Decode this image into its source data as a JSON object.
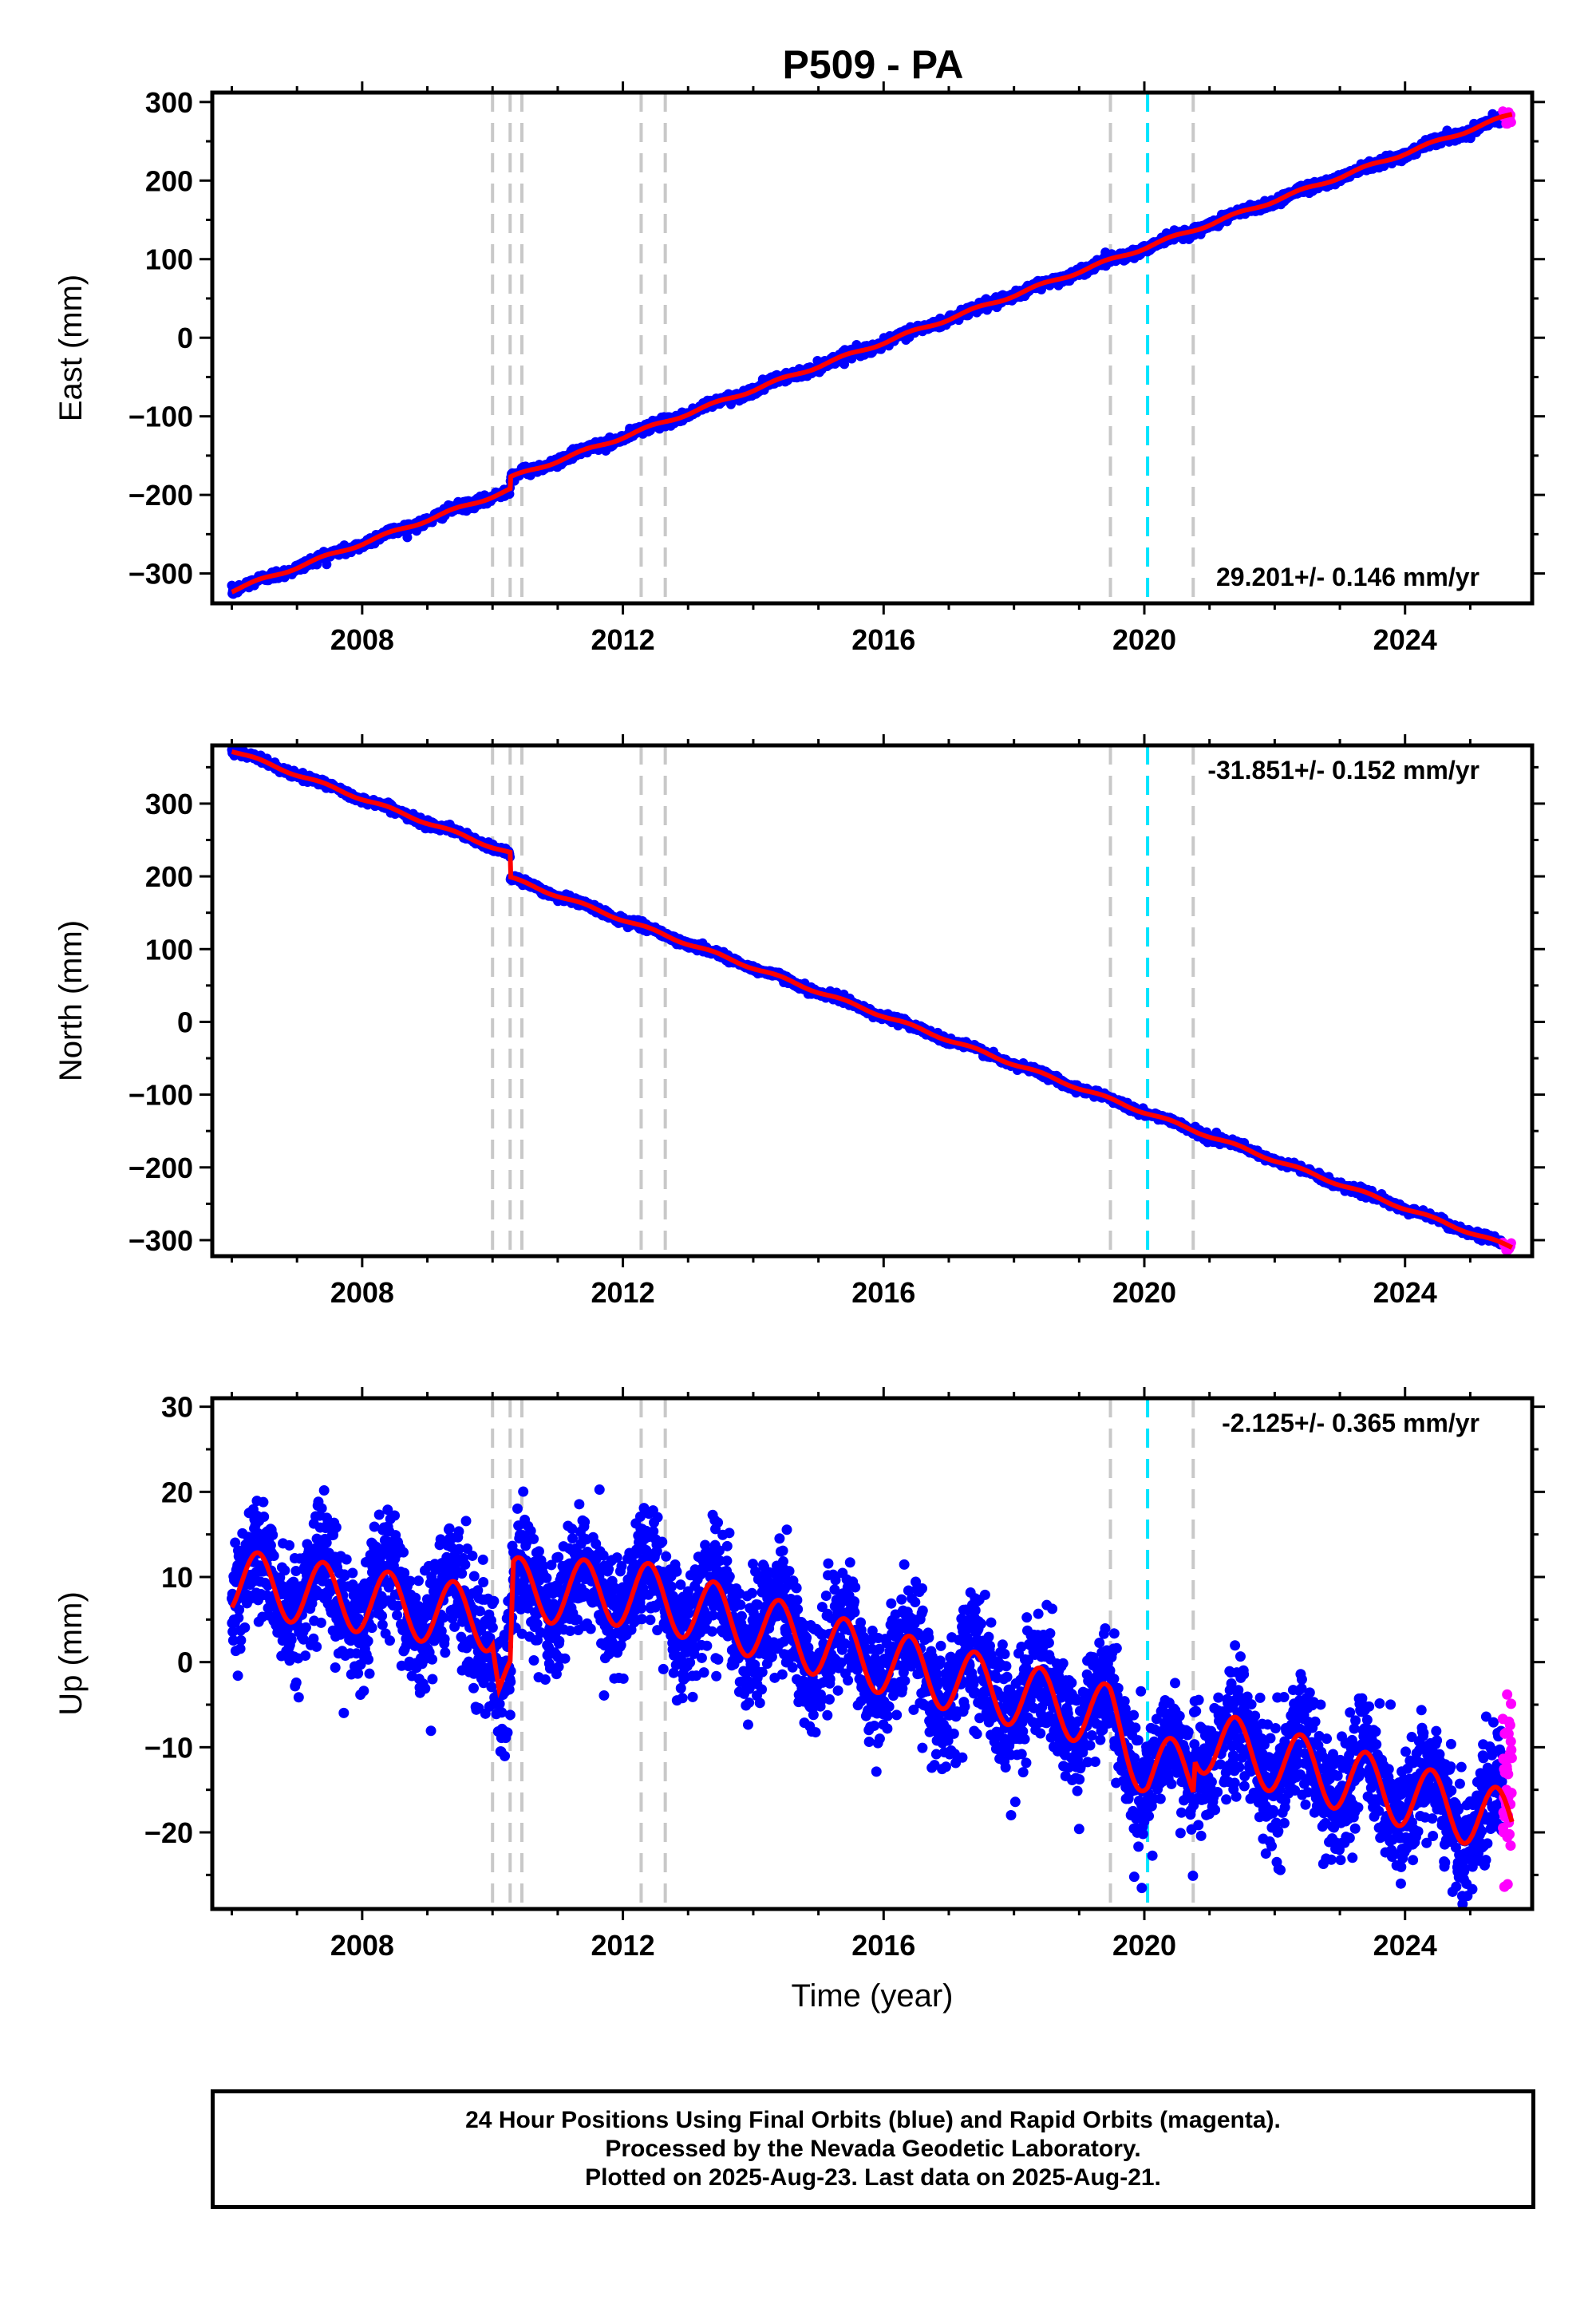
{
  "title": "P509 - PA",
  "footer": {
    "line1": "24 Hour Positions Using Final Orbits (blue) and Rapid Orbits (magenta).",
    "line2": "Processed by the Nevada Geodetic Laboratory.",
    "line3": "Plotted on 2025-Aug-23. Last data on 2025-Aug-21."
  },
  "colors": {
    "final_orbits": "#0000ff",
    "rapid_orbits": "#ff00ff",
    "model_fit": "#ff0000",
    "event_lines": "#c8c8c8",
    "reference_line": "#00e5ff"
  },
  "chart_data": [
    {
      "type": "scatter",
      "title": "P509 - PA",
      "xlabel": "",
      "ylabel": "East (mm)",
      "xlim": [
        2005.7,
        2025.95
      ],
      "ylim": [
        -338,
        312
      ],
      "x_ticks": [
        2008,
        2012,
        2016,
        2020,
        2024
      ],
      "y_ticks": [
        -300,
        -200,
        -100,
        0,
        100,
        200,
        300
      ],
      "rate_label": "29.201+/- 0.146 mm/yr",
      "rate_position": "bottom-right",
      "grey_event_lines": [
        2010.0,
        2010.27,
        2010.45,
        2012.28,
        2012.65,
        2019.48,
        2020.75
      ],
      "cyan_event_line": 2020.05,
      "trend": {
        "start": [
          2006.0,
          -322
        ],
        "end": [
          2025.6,
          283
        ]
      },
      "steps": [
        {
          "x": 2010.27,
          "dy": 15
        }
      ],
      "seasonal_amplitude": 2,
      "scatter_sd": 3,
      "series": [
        {
          "name": "Final Orbits",
          "color": "#0000ff",
          "x_range": [
            2006.0,
            2025.5
          ]
        },
        {
          "name": "Rapid Orbits",
          "color": "#ff00ff",
          "x_range": [
            2025.5,
            2025.64
          ]
        },
        {
          "name": "Model",
          "color": "#ff0000",
          "line": true
        }
      ]
    },
    {
      "type": "scatter",
      "xlabel": "",
      "ylabel": "North (mm)",
      "xlim": [
        2005.7,
        2025.95
      ],
      "ylim": [
        -322,
        380
      ],
      "x_ticks": [
        2008,
        2012,
        2016,
        2020,
        2024
      ],
      "y_ticks": [
        -300,
        -200,
        -100,
        0,
        100,
        200,
        300
      ],
      "rate_label": "-31.851+/- 0.152 mm/yr",
      "rate_position": "top-right",
      "grey_event_lines": [
        2010.0,
        2010.27,
        2010.45,
        2012.28,
        2012.65,
        2019.48,
        2020.75
      ],
      "cyan_event_line": 2020.05,
      "trend": {
        "start": [
          2006.0,
          373
        ],
        "end": [
          2025.6,
          -309
        ]
      },
      "steps": [
        {
          "x": 2010.27,
          "dy": -34
        }
      ],
      "seasonal_amplitude": 2,
      "scatter_sd": 2.5,
      "series": [
        {
          "name": "Final Orbits",
          "color": "#0000ff",
          "x_range": [
            2006.0,
            2025.5
          ]
        },
        {
          "name": "Rapid Orbits",
          "color": "#ff00ff",
          "x_range": [
            2025.5,
            2025.64
          ]
        },
        {
          "name": "Model",
          "color": "#ff0000",
          "line": true
        }
      ]
    },
    {
      "type": "scatter",
      "xlabel": "Time (year)",
      "ylabel": "Up (mm)",
      "xlim": [
        2005.7,
        2025.95
      ],
      "ylim": [
        -29,
        31
      ],
      "x_ticks": [
        2008,
        2012,
        2016,
        2020,
        2024
      ],
      "y_ticks": [
        -20,
        -10,
        0,
        10,
        20,
        30
      ],
      "rate_label": "-2.125+/- 0.365 mm/yr",
      "rate_position": "top-right",
      "grey_event_lines": [
        2010.0,
        2010.27,
        2010.45,
        2012.28,
        2012.65,
        2019.48,
        2020.75
      ],
      "cyan_event_line": 2020.05,
      "model_knots": [
        [
          2006.0,
          9.5
        ],
        [
          2010.0,
          5.0
        ],
        [
          2010.1,
          -2.0
        ],
        [
          2010.27,
          -2.5
        ],
        [
          2010.32,
          8.5
        ],
        [
          2012.3,
          8.0
        ],
        [
          2016.0,
          0.0
        ],
        [
          2019.48,
          -6.5
        ],
        [
          2019.6,
          -8.0
        ],
        [
          2020.05,
          -12.5
        ],
        [
          2020.75,
          -13.0
        ],
        [
          2020.78,
          -9.0
        ],
        [
          2025.64,
          -19.0
        ]
      ],
      "seasonal_amplitude": 3.8,
      "scatter_sd": 3.5,
      "series": [
        {
          "name": "Final Orbits",
          "color": "#0000ff",
          "x_range": [
            2006.0,
            2025.5
          ]
        },
        {
          "name": "Rapid Orbits",
          "color": "#ff00ff",
          "x_range": [
            2025.5,
            2025.64
          ]
        },
        {
          "name": "Model",
          "color": "#ff0000",
          "line": true
        }
      ]
    }
  ]
}
